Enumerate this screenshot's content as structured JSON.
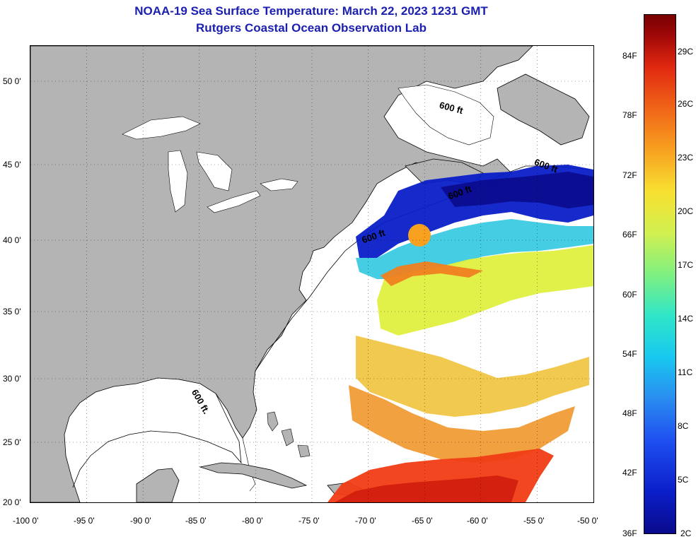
{
  "title": {
    "line1": "NOAA-19 Sea Surface Temperature:  March 22, 2023 1231 GMT",
    "line2": "Rutgers Coastal Ocean Observation Lab"
  },
  "axes": {
    "longitude_labels": [
      "-100 0'",
      "-95 0'",
      "-90 0'",
      "-85 0'",
      "-80 0'",
      "-75 0'",
      "-70 0'",
      "-65 0'",
      "-60 0'",
      "-55 0'",
      "-50 0'"
    ],
    "latitude_labels": [
      "50 0'",
      "45 0'",
      "40 0'",
      "35 0'",
      "30 0'",
      "25 0'",
      "20 0'"
    ]
  },
  "colorbar": {
    "fahrenheit_labels": [
      "84F",
      "78F",
      "72F",
      "66F",
      "60F",
      "54F",
      "48F",
      "42F",
      "36F"
    ],
    "celsius_labels": [
      "29C",
      "26C",
      "23C",
      "20C",
      "17C",
      "14C",
      "11C",
      "8C",
      "5C",
      "2C"
    ]
  },
  "contour_labels": {
    "northeast_shelf": "600 ft",
    "gulf_of_maine": "600 ft",
    "scotian_shelf": "600 ft",
    "grand_banks": "600 ft",
    "gulf_of_mexico": "600 ft."
  },
  "colors": {
    "land": "#b4b4b4",
    "title": "#1c20b0",
    "cold_water": "#0a1ec8",
    "warm_water": "#f03c14"
  }
}
